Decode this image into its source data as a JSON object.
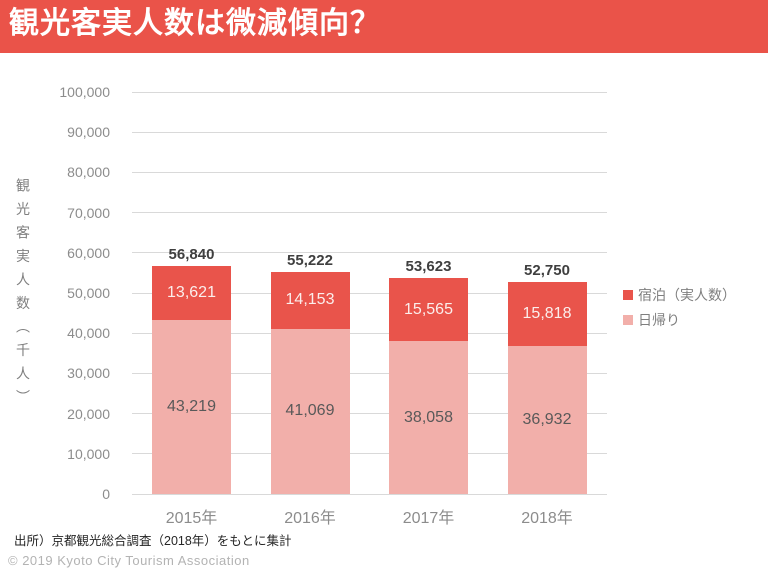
{
  "header": {
    "title": "観光客実人数は微減傾向？",
    "bg_color": "#EA5349"
  },
  "chart_data": {
    "type": "bar",
    "stacked": true,
    "title": "",
    "categories": [
      "2015年",
      "2016年",
      "2017年",
      "2018年"
    ],
    "series": [
      {
        "name": "日帰り",
        "color": "#F2AFAA",
        "values": [
          43219,
          41069,
          38058,
          36932
        ]
      },
      {
        "name": "宿泊（実人数）",
        "color": "#E9544B",
        "values": [
          13621,
          14153,
          15565,
          15818
        ]
      }
    ],
    "totals": [
      56840,
      55222,
      53623,
      52750
    ],
    "xlabel": "",
    "ylabel": "観光客実人数（千人）",
    "ylim": [
      0,
      100000
    ],
    "ytick_interval": 10000,
    "yticks": [
      "100,000",
      "90,000",
      "80,000",
      "70,000",
      "60,000",
      "50,000",
      "40,000",
      "30,000",
      "20,000",
      "10,000",
      "0"
    ],
    "grid": true,
    "legend_position": "right",
    "legend": [
      {
        "label": "宿泊（実人数）",
        "color": "#E9544B"
      },
      {
        "label": "日帰り",
        "color": "#F2AFAA"
      }
    ]
  },
  "footer": {
    "source": "出所）京都観光総合調査（2018年）をもとに集計",
    "copyright": "© 2019 Kyoto City Tourism Association"
  },
  "colors": {
    "accent_red": "#E9544B",
    "accent_pink": "#F2AFAA",
    "gridline": "#D9D9D9",
    "tick_text": "#8C8C8C"
  }
}
